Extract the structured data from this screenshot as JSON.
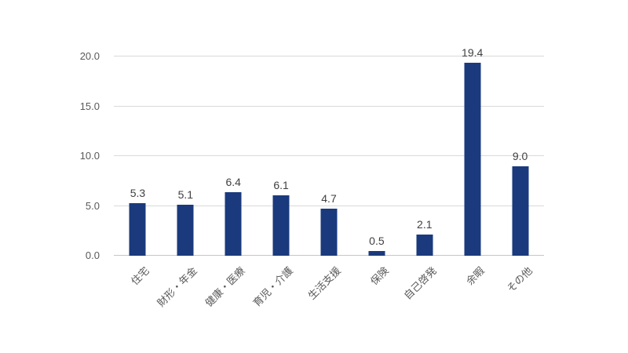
{
  "chart_data": {
    "type": "bar",
    "title": "",
    "xlabel": "",
    "ylabel": "",
    "categories": [
      "住宅",
      "財形・年金",
      "健康・医療",
      "育児・介護",
      "生活支援",
      "保険",
      "自己啓発",
      "余暇",
      "その他"
    ],
    "values": [
      5.3,
      5.1,
      6.4,
      6.1,
      4.7,
      0.5,
      2.1,
      19.4,
      9.0
    ],
    "value_labels": [
      "5.3",
      "5.1",
      "6.4",
      "6.1",
      "4.7",
      "0.5",
      "2.1",
      "19.4",
      "9.0"
    ],
    "ylim": [
      0,
      20
    ],
    "yticks": [
      "0.0",
      "5.0",
      "10.0",
      "15.0",
      "20.0"
    ],
    "grid": true,
    "legend": false,
    "category_labels_rotated_degrees": 45,
    "colors": {
      "bar": "#1A3A7D",
      "gridline": "#D9D9D9",
      "axis_line": "#C6C6C6",
      "tick_label": "#595959",
      "category_label": "#595959",
      "data_label": "#404040",
      "background": "#FFFFFF"
    }
  }
}
